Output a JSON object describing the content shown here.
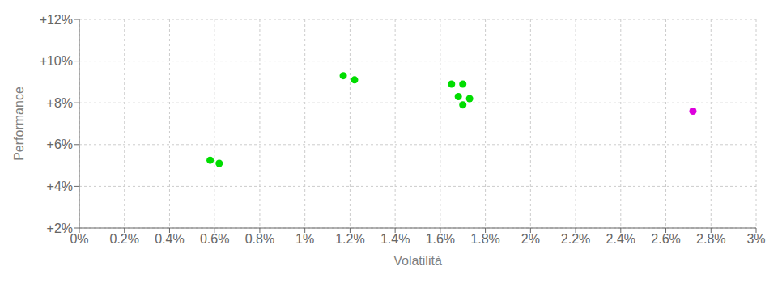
{
  "chart_data": {
    "type": "scatter",
    "x_label": "Volatilità",
    "y_label": "Performance",
    "xlim": [
      0.0,
      0.03
    ],
    "ylim": [
      0.02,
      0.12
    ],
    "xticks": [
      {
        "value": 0.0,
        "label": "0%"
      },
      {
        "value": 0.002,
        "label": "0.2%"
      },
      {
        "value": 0.004,
        "label": "0.4%"
      },
      {
        "value": 0.006,
        "label": "0.6%"
      },
      {
        "value": 0.008,
        "label": "0.8%"
      },
      {
        "value": 0.01,
        "label": "1%"
      },
      {
        "value": 0.012,
        "label": "1.2%"
      },
      {
        "value": 0.014,
        "label": "1.4%"
      },
      {
        "value": 0.016,
        "label": "1.6%"
      },
      {
        "value": 0.018,
        "label": "1.8%"
      },
      {
        "value": 0.02,
        "label": "2%"
      },
      {
        "value": 0.022,
        "label": "2.2%"
      },
      {
        "value": 0.024,
        "label": "2.4%"
      },
      {
        "value": 0.026,
        "label": "2.6%"
      },
      {
        "value": 0.028,
        "label": "2.8%"
      },
      {
        "value": 0.03,
        "label": "3%"
      }
    ],
    "yticks": [
      {
        "value": 0.02,
        "label": "+2%"
      },
      {
        "value": 0.04,
        "label": "+4%"
      },
      {
        "value": 0.06,
        "label": "+6%"
      },
      {
        "value": 0.08,
        "label": "+8%"
      },
      {
        "value": 0.1,
        "label": "+10%"
      },
      {
        "value": 0.12,
        "label": "+12%"
      }
    ],
    "grid": true,
    "series": [
      {
        "color": "#00dd00",
        "x": [
          0.0058,
          0.0062,
          0.0117,
          0.0122,
          0.0165,
          0.017,
          0.0168,
          0.0173,
          0.017
        ],
        "values": [
          0.0525,
          0.051,
          0.093,
          0.091,
          0.089,
          0.089,
          0.083,
          0.082,
          0.079
        ]
      },
      {
        "color": "#dd00dd",
        "x": [
          0.0272
        ],
        "values": [
          0.076
        ]
      }
    ]
  }
}
